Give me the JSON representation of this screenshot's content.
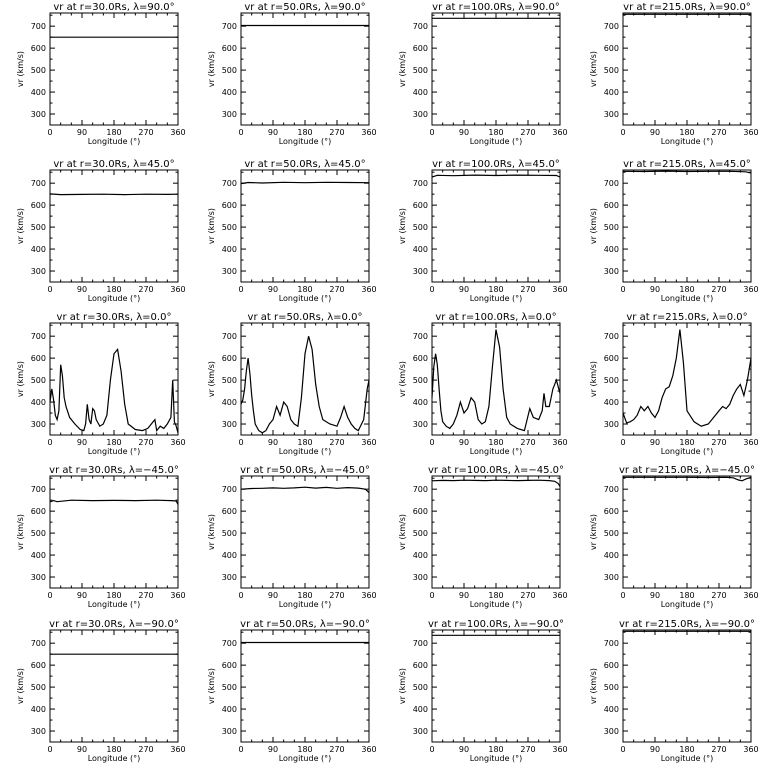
{
  "chart_data": [
    {
      "type": "line",
      "title": "vr at r=30.0Rs, λ=90.0°",
      "xlabel": "Longitude (°)",
      "ylabel": "vr (km/s)",
      "xlim": [
        0,
        360
      ],
      "ylim": [
        250,
        760
      ],
      "xticks": [
        0,
        90,
        180,
        270,
        360
      ],
      "yticks": [
        300,
        400,
        500,
        600,
        700
      ],
      "series": [
        {
          "x": [
            0,
            360
          ],
          "y": [
            650,
            650
          ]
        }
      ]
    },
    {
      "type": "line",
      "title": "vr at r=50.0Rs, λ=90.0°",
      "xlabel": "Longitude (°)",
      "ylabel": "vr (km/s)",
      "xlim": [
        0,
        360
      ],
      "ylim": [
        250,
        760
      ],
      "xticks": [
        0,
        90,
        180,
        270,
        360
      ],
      "yticks": [
        300,
        400,
        500,
        600,
        700
      ],
      "series": [
        {
          "x": [
            0,
            360
          ],
          "y": [
            703,
            703
          ]
        }
      ]
    },
    {
      "type": "line",
      "title": "vr at r=100.0Rs, λ=90.0°",
      "xlabel": "Longitude (°)",
      "ylabel": "vr (km/s)",
      "xlim": [
        0,
        360
      ],
      "ylim": [
        250,
        760
      ],
      "xticks": [
        0,
        90,
        180,
        270,
        360
      ],
      "yticks": [
        300,
        400,
        500,
        600,
        700
      ],
      "series": [
        {
          "x": [
            0,
            360
          ],
          "y": [
            736,
            736
          ]
        }
      ]
    },
    {
      "type": "line",
      "title": "vr at r=215.0Rs, λ=90.0°",
      "xlabel": "Longitude (°)",
      "ylabel": "vr (km/s)",
      "xlim": [
        0,
        360
      ],
      "ylim": [
        250,
        760
      ],
      "xticks": [
        0,
        90,
        180,
        270,
        360
      ],
      "yticks": [
        300,
        400,
        500,
        600,
        700
      ],
      "series": [
        {
          "x": [
            0,
            360
          ],
          "y": [
            754,
            754
          ]
        }
      ]
    },
    {
      "type": "line",
      "title": "vr at r=30.0Rs, λ=45.0°",
      "xlabel": "Longitude (°)",
      "ylabel": "vr (km/s)",
      "xlim": [
        0,
        360
      ],
      "ylim": [
        250,
        760
      ],
      "xticks": [
        0,
        90,
        180,
        270,
        360
      ],
      "yticks": [
        300,
        400,
        500,
        600,
        700
      ],
      "series": [
        {
          "x": [
            0,
            30,
            90,
            150,
            210,
            270,
            330,
            360
          ],
          "y": [
            651,
            648,
            649,
            650,
            648,
            650,
            649,
            650
          ]
        }
      ]
    },
    {
      "type": "line",
      "title": "vr at r=50.0Rs, λ=45.0°",
      "xlabel": "Longitude (°)",
      "ylabel": "vr (km/s)",
      "xlim": [
        0,
        360
      ],
      "ylim": [
        250,
        760
      ],
      "xticks": [
        0,
        90,
        180,
        270,
        360
      ],
      "yticks": [
        300,
        400,
        500,
        600,
        700
      ],
      "series": [
        {
          "x": [
            0,
            20,
            60,
            120,
            180,
            240,
            300,
            360
          ],
          "y": [
            698,
            703,
            701,
            704,
            702,
            704,
            703,
            702
          ]
        }
      ]
    },
    {
      "type": "line",
      "title": "vr at r=100.0Rs, λ=45.0°",
      "xlabel": "Longitude (°)",
      "ylabel": "vr (km/s)",
      "xlim": [
        0,
        360
      ],
      "ylim": [
        250,
        760
      ],
      "xticks": [
        0,
        90,
        180,
        270,
        360
      ],
      "yticks": [
        300,
        400,
        500,
        600,
        700
      ],
      "series": [
        {
          "x": [
            0,
            15,
            60,
            120,
            180,
            240,
            300,
            350,
            360
          ],
          "y": [
            728,
            736,
            734,
            737,
            735,
            737,
            736,
            735,
            728
          ]
        }
      ]
    },
    {
      "type": "line",
      "title": "vr at r=215.0Rs, λ=45.0°",
      "xlabel": "Longitude (°)",
      "ylabel": "vr (km/s)",
      "xlim": [
        0,
        360
      ],
      "ylim": [
        250,
        760
      ],
      "xticks": [
        0,
        90,
        180,
        270,
        360
      ],
      "yticks": [
        300,
        400,
        500,
        600,
        700
      ],
      "series": [
        {
          "x": [
            0,
            60,
            120,
            180,
            240,
            300,
            345,
            360
          ],
          "y": [
            754,
            753,
            755,
            753,
            754,
            754,
            752,
            746
          ]
        }
      ]
    },
    {
      "type": "line",
      "title": "vr at r=30.0Rs, λ=0.0°",
      "xlabel": "Longitude (°)",
      "ylabel": "vr (km/s)",
      "xlim": [
        0,
        360
      ],
      "ylim": [
        250,
        760
      ],
      "xticks": [
        0,
        90,
        180,
        270,
        360
      ],
      "yticks": [
        300,
        400,
        500,
        600,
        700
      ],
      "series": [
        {
          "x": [
            0,
            5,
            10,
            15,
            20,
            25,
            30,
            35,
            40,
            45,
            55,
            70,
            85,
            95,
            100,
            105,
            110,
            115,
            120,
            125,
            130,
            140,
            150,
            160,
            170,
            180,
            190,
            200,
            210,
            220,
            240,
            260,
            275,
            285,
            295,
            300,
            310,
            320,
            330,
            340,
            345,
            350,
            355,
            360
          ],
          "y": [
            400,
            460,
            410,
            340,
            320,
            360,
            570,
            520,
            420,
            380,
            330,
            300,
            275,
            270,
            300,
            390,
            320,
            300,
            370,
            360,
            320,
            290,
            300,
            340,
            500,
            620,
            640,
            540,
            390,
            300,
            275,
            270,
            280,
            300,
            320,
            270,
            290,
            280,
            300,
            330,
            500,
            310,
            290,
            260
          ]
        }
      ]
    },
    {
      "type": "line",
      "title": "vr at r=50.0Rs, λ=0.0°",
      "xlabel": "Longitude (°)",
      "ylabel": "vr (km/s)",
      "xlim": [
        0,
        360
      ],
      "ylim": [
        250,
        760
      ],
      "xticks": [
        0,
        90,
        180,
        270,
        360
      ],
      "yticks": [
        300,
        400,
        500,
        600,
        700
      ],
      "series": [
        {
          "x": [
            0,
            5,
            10,
            15,
            20,
            25,
            30,
            35,
            40,
            50,
            60,
            70,
            80,
            90,
            100,
            110,
            120,
            130,
            140,
            150,
            160,
            170,
            180,
            190,
            200,
            210,
            220,
            230,
            250,
            270,
            280,
            290,
            300,
            310,
            320,
            330,
            345,
            355,
            360
          ],
          "y": [
            390,
            410,
            460,
            540,
            600,
            530,
            430,
            360,
            300,
            270,
            260,
            270,
            300,
            320,
            380,
            340,
            400,
            380,
            320,
            300,
            290,
            420,
            620,
            700,
            640,
            480,
            380,
            320,
            300,
            290,
            330,
            380,
            330,
            300,
            280,
            270,
            320,
            460,
            500
          ]
        }
      ]
    },
    {
      "type": "line",
      "title": "vr at r=100.0Rs, λ=0.0°",
      "xlabel": "Longitude (°)",
      "ylabel": "vr (km/s)",
      "xlim": [
        0,
        360
      ],
      "ylim": [
        250,
        760
      ],
      "xticks": [
        0,
        90,
        180,
        270,
        360
      ],
      "yticks": [
        300,
        400,
        500,
        600,
        700
      ],
      "series": [
        {
          "x": [
            0,
            5,
            10,
            15,
            20,
            25,
            30,
            40,
            50,
            60,
            70,
            80,
            90,
            100,
            110,
            120,
            130,
            140,
            150,
            160,
            170,
            180,
            190,
            200,
            210,
            220,
            240,
            260,
            275,
            285,
            300,
            310,
            315,
            320,
            330,
            340,
            350,
            360
          ],
          "y": [
            420,
            560,
            620,
            570,
            460,
            360,
            310,
            290,
            280,
            300,
            340,
            400,
            350,
            370,
            420,
            400,
            320,
            300,
            310,
            380,
            560,
            730,
            650,
            460,
            330,
            300,
            280,
            270,
            370,
            330,
            320,
            360,
            440,
            380,
            380,
            460,
            500,
            440
          ]
        }
      ]
    },
    {
      "type": "line",
      "title": "vr at r=215.0Rs, λ=0.0°",
      "xlabel": "Longitude (°)",
      "ylabel": "vr (km/s)",
      "xlim": [
        0,
        360
      ],
      "ylim": [
        250,
        760
      ],
      "xticks": [
        0,
        90,
        180,
        270,
        360
      ],
      "yticks": [
        300,
        400,
        500,
        600,
        700
      ],
      "series": [
        {
          "x": [
            0,
            10,
            20,
            30,
            40,
            50,
            55,
            60,
            70,
            80,
            90,
            100,
            110,
            120,
            130,
            140,
            150,
            160,
            170,
            180,
            200,
            220,
            240,
            260,
            270,
            280,
            290,
            300,
            310,
            320,
            330,
            340,
            350,
            360
          ],
          "y": [
            350,
            305,
            310,
            320,
            340,
            380,
            370,
            360,
            380,
            350,
            330,
            360,
            420,
            460,
            470,
            520,
            600,
            730,
            580,
            360,
            310,
            290,
            300,
            340,
            360,
            380,
            370,
            390,
            430,
            460,
            480,
            430,
            500,
            600
          ]
        }
      ]
    },
    {
      "type": "line",
      "title": "vr at r=30.0Rs, λ=−45.0°",
      "xlabel": "Longitude (°)",
      "ylabel": "vr (km/s)",
      "xlim": [
        0,
        360
      ],
      "ylim": [
        250,
        760
      ],
      "xticks": [
        0,
        90,
        180,
        270,
        360
      ],
      "yticks": [
        300,
        400,
        500,
        600,
        700
      ],
      "series": [
        {
          "x": [
            0,
            10,
            20,
            60,
            120,
            180,
            240,
            300,
            340,
            355,
            360
          ],
          "y": [
            642,
            648,
            643,
            650,
            648,
            649,
            648,
            650,
            648,
            646,
            630
          ]
        }
      ]
    },
    {
      "type": "line",
      "title": "vr at r=50.0Rs, λ=−45.0°",
      "xlabel": "Longitude (°)",
      "ylabel": "vr (km/s)",
      "xlim": [
        0,
        360
      ],
      "ylim": [
        250,
        760
      ],
      "xticks": [
        0,
        90,
        180,
        270,
        360
      ],
      "yticks": [
        300,
        400,
        500,
        600,
        700
      ],
      "series": [
        {
          "x": [
            0,
            30,
            60,
            90,
            120,
            150,
            180,
            210,
            240,
            270,
            300,
            330,
            350,
            360
          ],
          "y": [
            700,
            703,
            704,
            706,
            704,
            706,
            709,
            705,
            708,
            704,
            707,
            705,
            700,
            685
          ]
        }
      ]
    },
    {
      "type": "line",
      "title": "vr at r=100.0Rs, λ=−45.0°",
      "xlabel": "Longitude (°)",
      "ylabel": "vr (km/s)",
      "xlim": [
        0,
        360
      ],
      "ylim": [
        250,
        760
      ],
      "xticks": [
        0,
        90,
        180,
        270,
        360
      ],
      "yticks": [
        300,
        400,
        500,
        600,
        700
      ],
      "series": [
        {
          "x": [
            0,
            30,
            60,
            90,
            120,
            150,
            180,
            210,
            240,
            270,
            300,
            330,
            345,
            355,
            360
          ],
          "y": [
            738,
            740,
            739,
            741,
            740,
            739,
            741,
            740,
            739,
            740,
            741,
            739,
            736,
            726,
            712
          ]
        }
      ]
    },
    {
      "type": "line",
      "title": "vr at r=215.0Rs, λ=−45.0°",
      "xlabel": "Longitude (°)",
      "ylabel": "vr (km/s)",
      "xlim": [
        0,
        360
      ],
      "ylim": [
        250,
        760
      ],
      "xticks": [
        0,
        90,
        180,
        270,
        360
      ],
      "yticks": [
        300,
        400,
        500,
        600,
        700
      ],
      "series": [
        {
          "x": [
            0,
            60,
            120,
            180,
            240,
            290,
            310,
            325,
            335,
            345,
            360
          ],
          "y": [
            754,
            754,
            754,
            754,
            753,
            754,
            752,
            742,
            738,
            746,
            754
          ]
        }
      ]
    },
    {
      "type": "line",
      "title": "vr at r=30.0Rs, λ=−90.0°",
      "xlabel": "Longitude (°)",
      "ylabel": "vr (km/s)",
      "xlim": [
        0,
        360
      ],
      "ylim": [
        250,
        760
      ],
      "xticks": [
        0,
        90,
        180,
        270,
        360
      ],
      "yticks": [
        300,
        400,
        500,
        600,
        700
      ],
      "series": [
        {
          "x": [
            0,
            360
          ],
          "y": [
            650,
            650
          ]
        }
      ]
    },
    {
      "type": "line",
      "title": "vr at r=50.0Rs, λ=−90.0°",
      "xlabel": "Longitude (°)",
      "ylabel": "vr (km/s)",
      "xlim": [
        0,
        360
      ],
      "ylim": [
        250,
        760
      ],
      "xticks": [
        0,
        90,
        180,
        270,
        360
      ],
      "yticks": [
        300,
        400,
        500,
        600,
        700
      ],
      "series": [
        {
          "x": [
            0,
            360
          ],
          "y": [
            703,
            703
          ]
        }
      ]
    },
    {
      "type": "line",
      "title": "vr at r=100.0Rs, λ=−90.0°",
      "xlabel": "Longitude (°)",
      "ylabel": "vr (km/s)",
      "xlim": [
        0,
        360
      ],
      "ylim": [
        250,
        760
      ],
      "xticks": [
        0,
        90,
        180,
        270,
        360
      ],
      "yticks": [
        300,
        400,
        500,
        600,
        700
      ],
      "series": [
        {
          "x": [
            0,
            360
          ],
          "y": [
            736,
            736
          ]
        }
      ]
    },
    {
      "type": "line",
      "title": "vr at r=215.0Rs, λ=−90.0°",
      "xlabel": "Longitude (°)",
      "ylabel": "vr (km/s)",
      "xlim": [
        0,
        360
      ],
      "ylim": [
        250,
        760
      ],
      "xticks": [
        0,
        90,
        180,
        270,
        360
      ],
      "yticks": [
        300,
        400,
        500,
        600,
        700
      ],
      "series": [
        {
          "x": [
            0,
            360
          ],
          "y": [
            754,
            754
          ]
        }
      ]
    }
  ]
}
